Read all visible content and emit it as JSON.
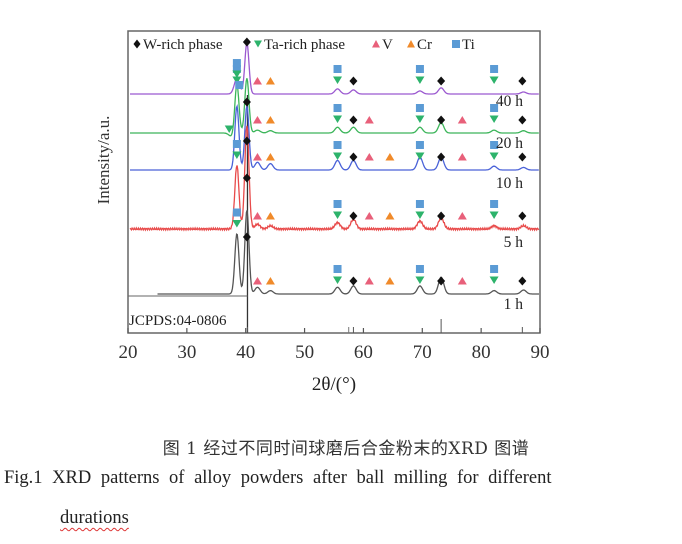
{
  "chart_data": {
    "type": "line",
    "title": "",
    "xlabel": "2θ/(°)",
    "ylabel": "Intensity/a.u.",
    "xlim": [
      20,
      90
    ],
    "x_ticks": [
      20,
      30,
      40,
      50,
      60,
      70,
      80,
      90
    ],
    "grid": false,
    "legend_position": "top",
    "legend": [
      {
        "label": "W-rich phase",
        "marker": "diamond",
        "color": "#111111"
      },
      {
        "label": "Ta-rich  phase",
        "marker": "triangle-down",
        "color": "#2db36b"
      },
      {
        "label": "V",
        "marker": "triangle-up",
        "color": "#e8607a"
      },
      {
        "label": "Cr",
        "marker": "club",
        "color": "#f08a2a"
      },
      {
        "label": "Ti",
        "marker": "square",
        "color": "#5b9bd5"
      }
    ],
    "reference": {
      "label": "JCPDS:04-0806",
      "lines": [
        40.3,
        58.3,
        73.2,
        87.0
      ],
      "minor": [
        57.5
      ]
    },
    "series": [
      {
        "name": "40 h",
        "color": "#9b59d0",
        "peaks": [
          [
            38.5,
            0.3
          ],
          [
            40.2,
            1.0
          ],
          [
            55.6,
            0.1
          ],
          [
            58.3,
            0.08
          ],
          [
            69.6,
            0.06
          ],
          [
            73.2,
            0.12
          ],
          [
            87.2,
            0.04
          ]
        ],
        "markers": [
          {
            "x": 38.5,
            "type": "Ti"
          },
          {
            "x": 38.5,
            "type": "Ta"
          },
          {
            "x": 40.2,
            "type": "W"
          },
          {
            "x": 42.0,
            "type": "V"
          },
          {
            "x": 44.2,
            "type": "Cr"
          },
          {
            "x": 55.6,
            "type": "Ti"
          },
          {
            "x": 55.6,
            "type": "Ta"
          },
          {
            "x": 58.3,
            "type": "W"
          },
          {
            "x": 69.6,
            "type": "Ti"
          },
          {
            "x": 69.6,
            "type": "Ta"
          },
          {
            "x": 73.2,
            "type": "W"
          },
          {
            "x": 82.2,
            "type": "Ti"
          },
          {
            "x": 82.2,
            "type": "Ta"
          },
          {
            "x": 87.0,
            "type": "W"
          }
        ]
      },
      {
        "name": "20 h",
        "color": "#3cb55a",
        "peaks": [
          [
            37.6,
            -0.06
          ],
          [
            38.5,
            0.85
          ],
          [
            40.2,
            0.95
          ],
          [
            42.0,
            0.05
          ],
          [
            44.2,
            0.04
          ],
          [
            55.6,
            0.1
          ],
          [
            58.3,
            0.1
          ],
          [
            69.6,
            0.1
          ],
          [
            73.2,
            0.18
          ],
          [
            82.2,
            0.05
          ],
          [
            87.2,
            0.04
          ]
        ],
        "markers": [
          {
            "x": 38.5,
            "type": "Ti"
          },
          {
            "x": 38.5,
            "type": "Ta"
          },
          {
            "x": 37.2,
            "type": "Ta"
          },
          {
            "x": 40.2,
            "type": "W"
          },
          {
            "x": 42.0,
            "type": "V"
          },
          {
            "x": 44.2,
            "type": "Cr"
          },
          {
            "x": 55.6,
            "type": "Ti"
          },
          {
            "x": 55.6,
            "type": "Ta"
          },
          {
            "x": 58.3,
            "type": "W"
          },
          {
            "x": 61.0,
            "type": "V"
          },
          {
            "x": 69.6,
            "type": "Ti"
          },
          {
            "x": 69.6,
            "type": "Ta"
          },
          {
            "x": 73.2,
            "type": "W"
          },
          {
            "x": 76.8,
            "type": "V"
          },
          {
            "x": 82.2,
            "type": "Ti"
          },
          {
            "x": 82.2,
            "type": "Ta"
          },
          {
            "x": 87.0,
            "type": "W"
          }
        ]
      },
      {
        "name": "10 h",
        "color": "#4a62d8",
        "peaks": [
          [
            38.5,
            1.0
          ],
          [
            40.2,
            1.0
          ],
          [
            42.0,
            0.12
          ],
          [
            44.2,
            0.1
          ],
          [
            55.6,
            0.15
          ],
          [
            58.3,
            0.15
          ],
          [
            69.6,
            0.2
          ],
          [
            73.2,
            0.2
          ],
          [
            82.2,
            0.06
          ],
          [
            87.2,
            0.04
          ]
        ],
        "markers": [
          {
            "x": 38.9,
            "type": "Ti"
          },
          {
            "x": 40.2,
            "type": "W"
          },
          {
            "x": 42.0,
            "type": "V"
          },
          {
            "x": 44.2,
            "type": "Cr"
          },
          {
            "x": 55.6,
            "type": "Ti"
          },
          {
            "x": 55.6,
            "type": "Ta"
          },
          {
            "x": 58.3,
            "type": "W"
          },
          {
            "x": 61.0,
            "type": "V"
          },
          {
            "x": 64.5,
            "type": "Cr"
          },
          {
            "x": 69.6,
            "type": "Ti"
          },
          {
            "x": 69.6,
            "type": "Ta"
          },
          {
            "x": 73.2,
            "type": "W"
          },
          {
            "x": 76.8,
            "type": "V"
          },
          {
            "x": 82.2,
            "type": "Ti"
          },
          {
            "x": 82.2,
            "type": "Ta"
          },
          {
            "x": 87.0,
            "type": "W"
          }
        ]
      },
      {
        "name": "5 h",
        "color": "#e84a4a",
        "peaks": [
          [
            38.5,
            0.8
          ],
          [
            40.2,
            1.3
          ],
          [
            42.0,
            0.06
          ],
          [
            44.2,
            0.04
          ],
          [
            55.6,
            0.08
          ],
          [
            58.3,
            0.12
          ],
          [
            69.6,
            0.1
          ],
          [
            73.2,
            0.14
          ],
          [
            82.2,
            0.04
          ],
          [
            87.2,
            0.04
          ]
        ],
        "markers": [
          {
            "x": 38.5,
            "type": "Ti"
          },
          {
            "x": 38.5,
            "type": "Ta"
          },
          {
            "x": 40.2,
            "type": "W"
          },
          {
            "x": 42.0,
            "type": "V"
          },
          {
            "x": 44.2,
            "type": "Cr"
          },
          {
            "x": 55.6,
            "type": "Ti"
          },
          {
            "x": 55.6,
            "type": "Ta"
          },
          {
            "x": 58.3,
            "type": "W"
          },
          {
            "x": 61.0,
            "type": "V"
          },
          {
            "x": 64.5,
            "type": "Cr"
          },
          {
            "x": 69.6,
            "type": "Ti"
          },
          {
            "x": 69.6,
            "type": "Ta"
          },
          {
            "x": 73.2,
            "type": "W"
          },
          {
            "x": 76.8,
            "type": "V"
          },
          {
            "x": 82.2,
            "type": "Ti"
          },
          {
            "x": 82.2,
            "type": "Ta"
          },
          {
            "x": 87.0,
            "type": "W"
          }
        ]
      },
      {
        "name": "1 h",
        "color": "#555555",
        "peaks": [
          [
            38.5,
            0.9
          ],
          [
            40.2,
            1.25
          ],
          [
            42.0,
            0.1
          ],
          [
            44.2,
            0.05
          ],
          [
            55.6,
            0.1
          ],
          [
            58.3,
            0.12
          ],
          [
            69.6,
            0.12
          ],
          [
            73.2,
            0.25
          ],
          [
            82.2,
            0.05
          ],
          [
            87.2,
            0.06
          ]
        ],
        "markers": [
          {
            "x": 38.5,
            "type": "Ti"
          },
          {
            "x": 38.5,
            "type": "Ta"
          },
          {
            "x": 40.2,
            "type": "W"
          },
          {
            "x": 42.0,
            "type": "V"
          },
          {
            "x": 44.2,
            "type": "Cr"
          },
          {
            "x": 55.6,
            "type": "Ti"
          },
          {
            "x": 55.6,
            "type": "Ta"
          },
          {
            "x": 58.3,
            "type": "W"
          },
          {
            "x": 61.0,
            "type": "V"
          },
          {
            "x": 64.5,
            "type": "Cr"
          },
          {
            "x": 69.6,
            "type": "Ti"
          },
          {
            "x": 69.6,
            "type": "Ta"
          },
          {
            "x": 73.2,
            "type": "W"
          },
          {
            "x": 76.8,
            "type": "V"
          },
          {
            "x": 82.2,
            "type": "Ti"
          },
          {
            "x": 82.2,
            "type": "Ta"
          },
          {
            "x": 87.0,
            "type": "W"
          }
        ]
      }
    ]
  },
  "caption": {
    "cn": "图 1  经过不同时间球磨后合金粉末的XRD 图谱",
    "en_line1": "Fig.1  XRD patterns of alloy powders after ball milling for different",
    "en_line2": "durations"
  }
}
